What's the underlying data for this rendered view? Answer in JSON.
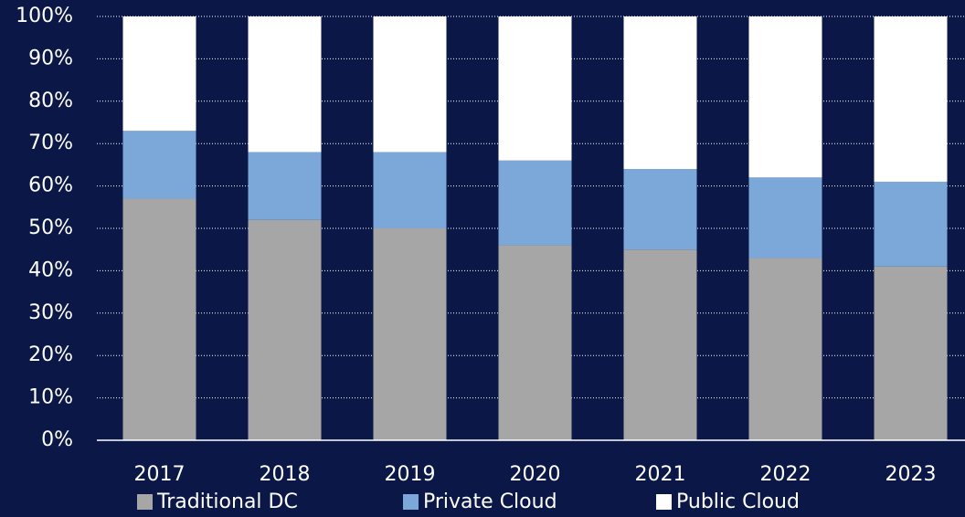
{
  "chart_data": {
    "type": "stacked_bar",
    "categories": [
      "2017",
      "2018",
      "2019",
      "2020",
      "2021",
      "2022",
      "2023"
    ],
    "series": [
      {
        "name": "Traditional DC",
        "color": "#a6a6a6",
        "values": [
          57,
          52,
          50,
          46,
          45,
          43,
          41
        ]
      },
      {
        "name": "Private Cloud",
        "color": "#7ba7d9",
        "values": [
          16,
          16,
          18,
          20,
          19,
          19,
          20
        ]
      },
      {
        "name": "Public Cloud",
        "color": "#ffffff",
        "values": [
          27,
          32,
          32,
          34,
          36,
          38,
          39
        ]
      }
    ],
    "ylim": [
      0,
      100
    ],
    "yticks": [
      {
        "value": 0,
        "label": "0%"
      },
      {
        "value": 10,
        "label": "10%"
      },
      {
        "value": 20,
        "label": "20%"
      },
      {
        "value": 30,
        "label": "30%"
      },
      {
        "value": 40,
        "label": "40%"
      },
      {
        "value": 50,
        "label": "50%"
      },
      {
        "value": 60,
        "label": "60%"
      },
      {
        "value": 70,
        "label": "70%"
      },
      {
        "value": 80,
        "label": "80%"
      },
      {
        "value": 90,
        "label": "90%"
      },
      {
        "value": 100,
        "label": "100%"
      }
    ],
    "grid": true,
    "legend": "bottom"
  }
}
